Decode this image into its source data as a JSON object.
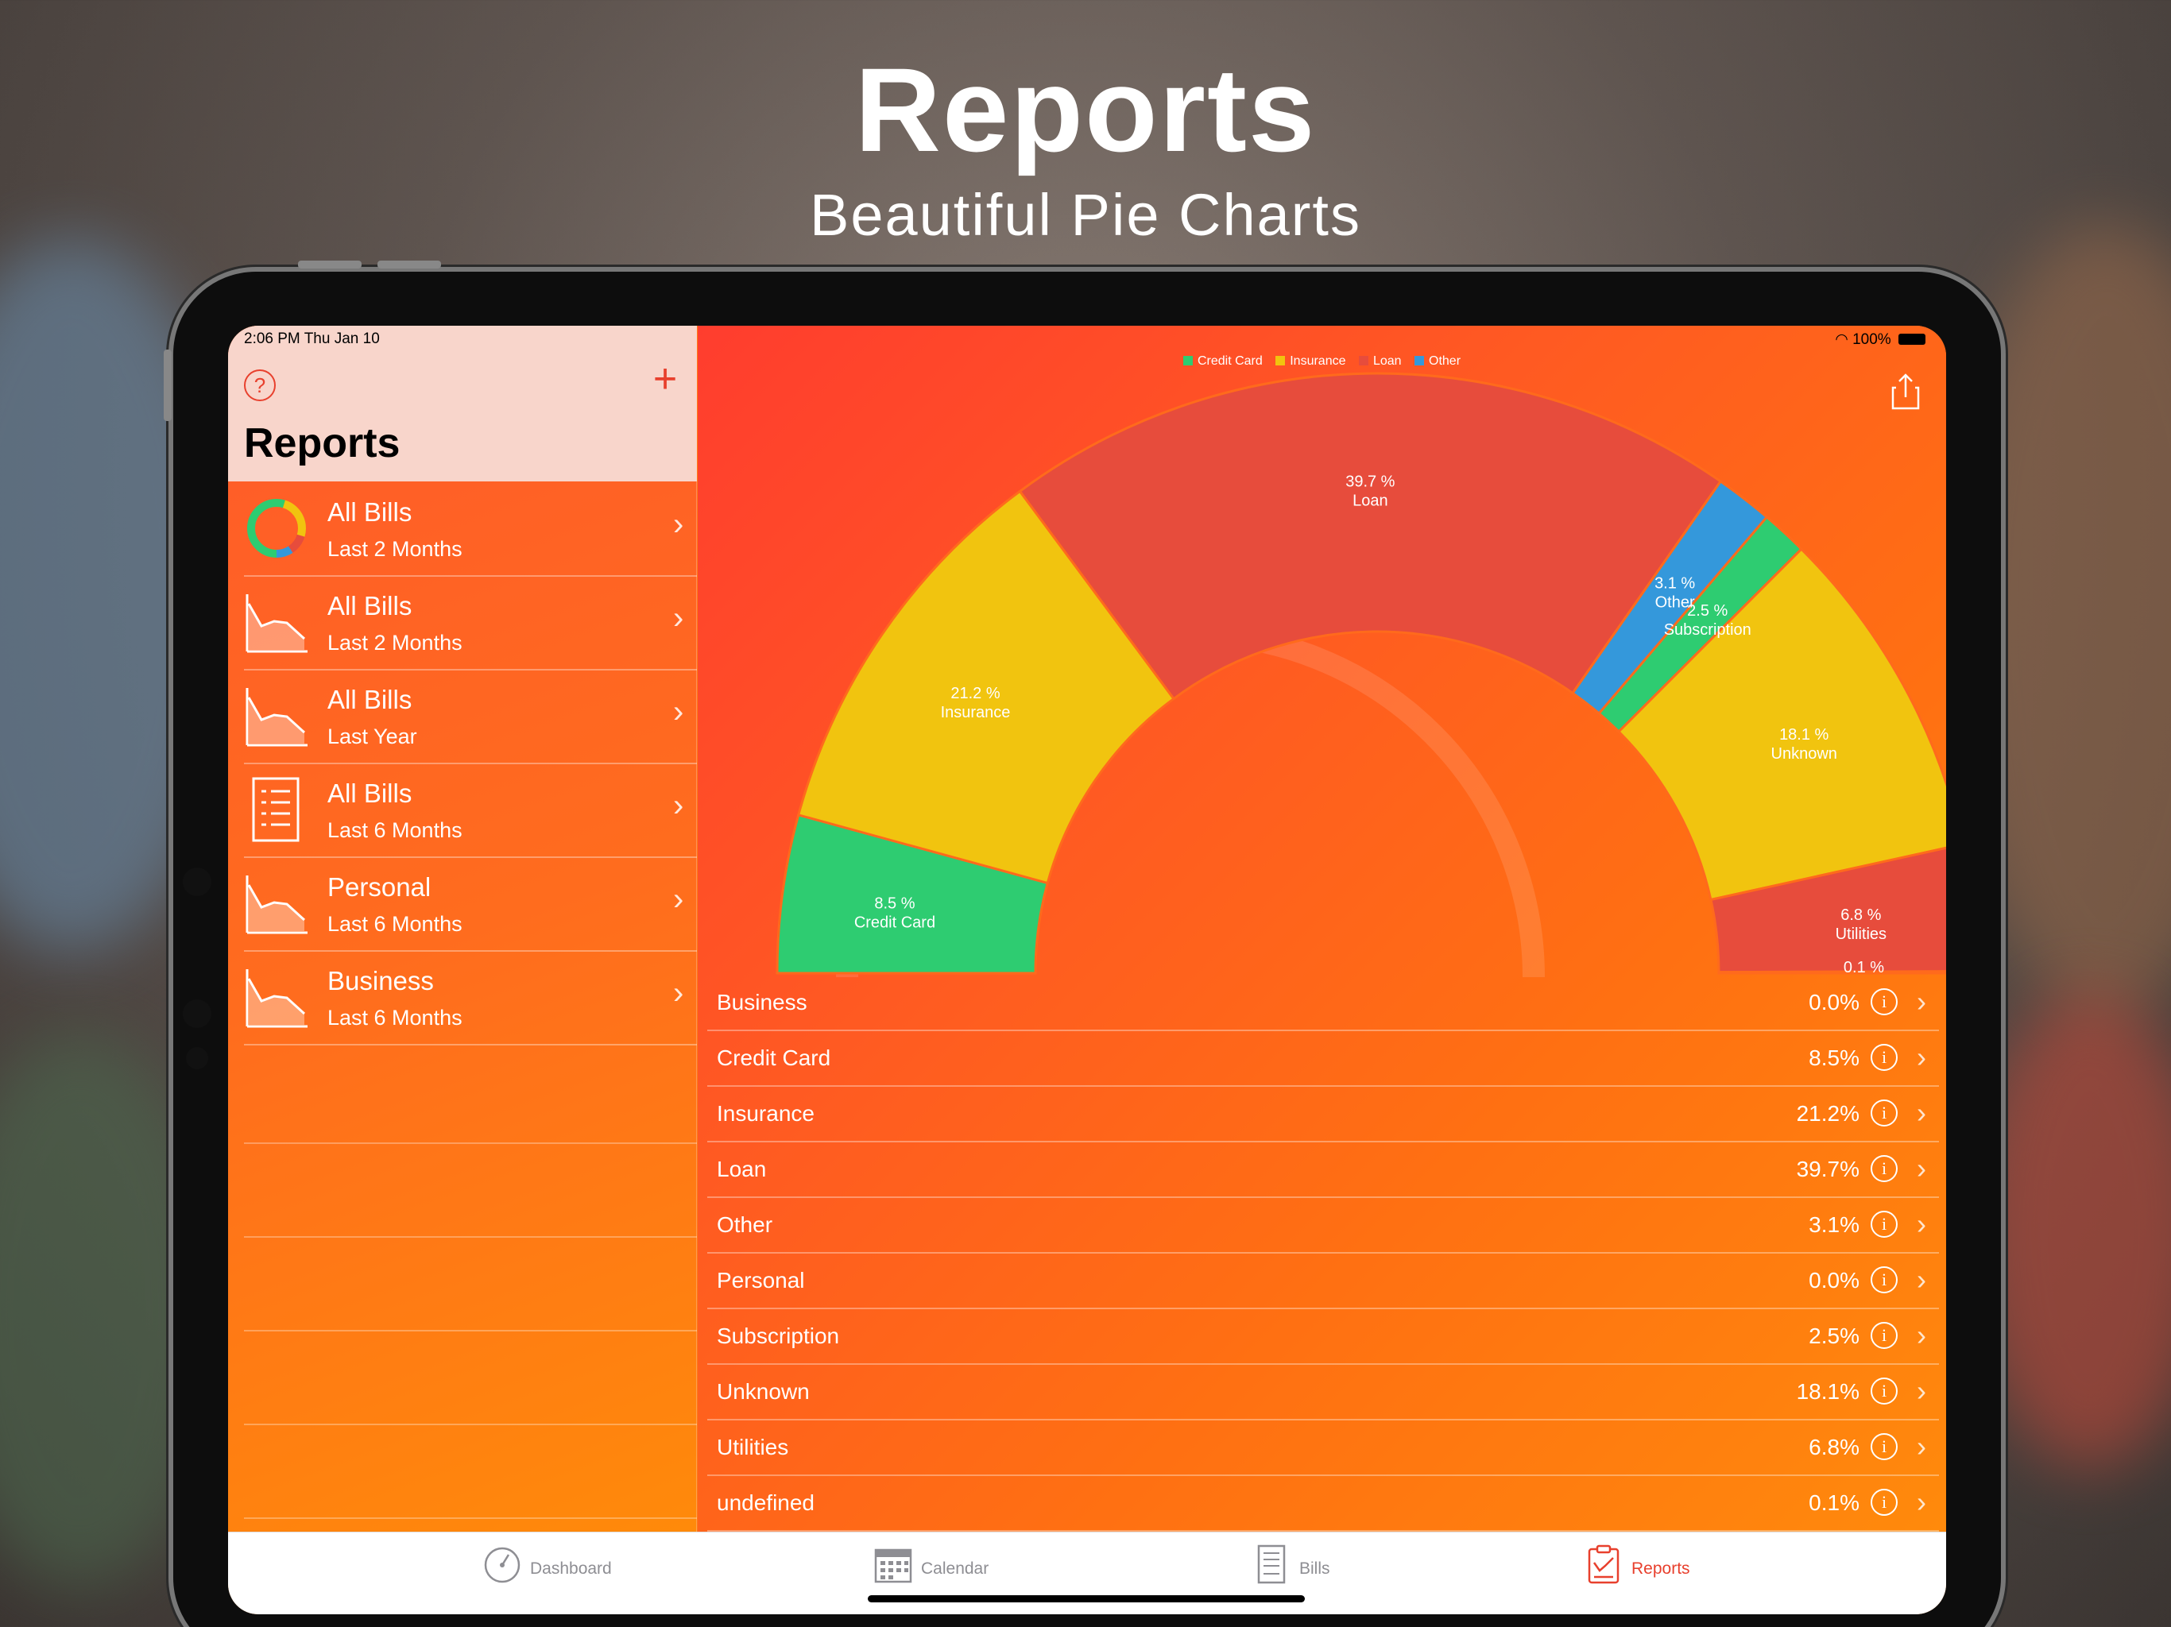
{
  "promo": {
    "title": "Reports",
    "subtitle": "Beautiful Pie Charts"
  },
  "status_bar": {
    "time_date": "2:06 PM   Thu Jan 10",
    "battery": "100%"
  },
  "sidebar": {
    "title": "Reports",
    "help_icon": "help-circle-icon",
    "add_icon": "plus-icon",
    "items": [
      {
        "name": "All Bills",
        "period": "Last 2 Months",
        "icon": "donut-chart-icon"
      },
      {
        "name": "All Bills",
        "period": "Last 2 Months",
        "icon": "line-chart-icon"
      },
      {
        "name": "All Bills",
        "period": "Last Year",
        "icon": "line-chart-icon"
      },
      {
        "name": "All Bills",
        "period": "Last 6 Months",
        "icon": "list-icon"
      },
      {
        "name": "Personal",
        "period": "Last 6 Months",
        "icon": "line-chart-icon"
      },
      {
        "name": "Business",
        "period": "Last 6 Months",
        "icon": "line-chart-icon"
      }
    ]
  },
  "main": {
    "share_icon": "share-icon",
    "legend": [
      {
        "name": "Credit Card",
        "color": "#2ecc71"
      },
      {
        "name": "Insurance",
        "color": "#f1c40f"
      },
      {
        "name": "Loan",
        "color": "#e74c3c"
      },
      {
        "name": "Other",
        "color": "#3498db"
      }
    ]
  },
  "chart_data": {
    "type": "pie",
    "title": "",
    "variant": "half-donut",
    "slices": [
      {
        "name": "Credit Card",
        "value": 8.5,
        "label": "8.5 %",
        "color": "#2ecc71"
      },
      {
        "name": "Insurance",
        "value": 21.2,
        "label": "21.2 %",
        "color": "#f1c40f"
      },
      {
        "name": "Loan",
        "value": 39.7,
        "label": "39.7 %",
        "color": "#e74c3c"
      },
      {
        "name": "Other",
        "value": 3.1,
        "label": "3.1 %",
        "color": "#3498db"
      },
      {
        "name": "Subscription",
        "value": 2.5,
        "label": "2.5 %",
        "color": "#2ecc71"
      },
      {
        "name": "Unknown",
        "value": 18.1,
        "label": "18.1 %",
        "color": "#f1c40f"
      },
      {
        "name": "Utilities",
        "value": 6.8,
        "label": "6.8 %",
        "color": "#e74c3c"
      },
      {
        "name": "",
        "value": 0.1,
        "label": "0.1 %",
        "color": "#3498db"
      }
    ]
  },
  "categories": [
    {
      "name": "Business",
      "pct": "0.0%"
    },
    {
      "name": "Credit Card",
      "pct": "8.5%"
    },
    {
      "name": "Insurance",
      "pct": "21.2%"
    },
    {
      "name": "Loan",
      "pct": "39.7%"
    },
    {
      "name": "Other",
      "pct": "3.1%"
    },
    {
      "name": "Personal",
      "pct": "0.0%"
    },
    {
      "name": "Subscription",
      "pct": "2.5%"
    },
    {
      "name": "Unknown",
      "pct": "18.1%"
    },
    {
      "name": "Utilities",
      "pct": "6.8%"
    },
    {
      "name": "undefined",
      "pct": "0.1%"
    }
  ],
  "tabbar": {
    "tabs": [
      {
        "label": "Dashboard",
        "icon": "gauge-icon",
        "active": false
      },
      {
        "label": "Calendar",
        "icon": "calendar-icon",
        "active": false
      },
      {
        "label": "Bills",
        "icon": "bill-icon",
        "active": false
      },
      {
        "label": "Reports",
        "icon": "reports-icon",
        "active": true
      }
    ]
  }
}
